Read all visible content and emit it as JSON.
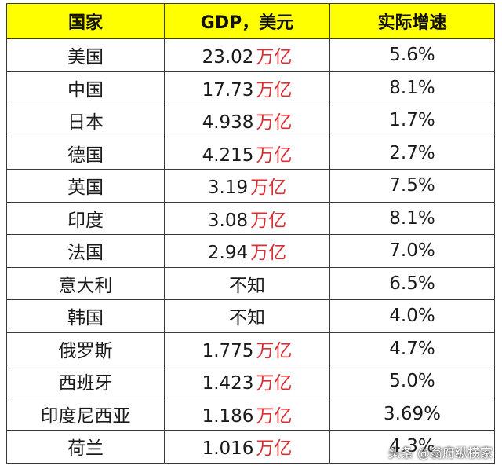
{
  "table": {
    "headers": {
      "country": "国家",
      "gdp": "GDP，美元",
      "growth": "实际增速"
    },
    "unit_label": "万亿",
    "rows": [
      {
        "country": "美国",
        "gdp": "23.02",
        "growth": "5.6%"
      },
      {
        "country": "中国",
        "gdp": "17.73",
        "growth": "8.1%"
      },
      {
        "country": "日本",
        "gdp": "4.938",
        "growth": "1.7%"
      },
      {
        "country": "德国",
        "gdp": "4.215",
        "growth": "2.7%"
      },
      {
        "country": "英国",
        "gdp": "3.19",
        "growth": "7.5%"
      },
      {
        "country": "印度",
        "gdp": "3.08",
        "growth": "8.1%"
      },
      {
        "country": "法国",
        "gdp": "2.94",
        "growth": "7.0%"
      },
      {
        "country": "意大利",
        "gdp": "不知",
        "growth": "6.5%"
      },
      {
        "country": "韩国",
        "gdp": "不知",
        "growth": "4.0%"
      },
      {
        "country": "俄罗斯",
        "gdp": "1.775",
        "growth": "4.7%"
      },
      {
        "country": "西班牙",
        "gdp": "1.423",
        "growth": "5.0%"
      },
      {
        "country": "印度尼西亚",
        "gdp": "1.186",
        "growth": "3.69%"
      },
      {
        "country": "荷兰",
        "gdp": "1.016",
        "growth": "4.3%"
      }
    ]
  },
  "colors": {
    "header_bg": "#ffff00",
    "unit_text": "#d92f34",
    "border": "#3a3a3a"
  },
  "watermark": "头条 @翁府纵横家"
}
